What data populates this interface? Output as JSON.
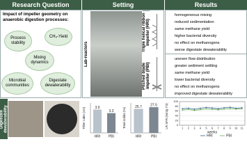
{
  "headers": {
    "research_question": "Research Question",
    "setting": "Setting",
    "results": "Results"
  },
  "research_question": {
    "intro": "Impact of impeller geometry on anaerobic digestion processes:",
    "topics": [
      "Process stability",
      "CH₄-Yield",
      "Mixing dynamics",
      "Microbial communities",
      "Digestate dewaterability"
    ]
  },
  "setting": {
    "lab_label": "Lab-reactors",
    "hri_label": "Triple helical ribbon impeller (HRI)",
    "pbi_label": "Pitched blade impeller (PBI)"
  },
  "results": {
    "hri": [
      "homogeneous mixing",
      "reduced sedimentation",
      "same methane yield",
      "higher bacterial diversity",
      "no effect on methanogens",
      "worse digestate dewaterability"
    ],
    "pbi": [
      "uneven flow distribution",
      "greater sediment settling",
      "same methane yield",
      "lower bacterial diversity",
      "no effect on methanogens",
      "improved digestate dewaterability"
    ]
  },
  "dewaterability_label": "Digestate dewaterability",
  "chart_data": [
    {
      "type": "bar",
      "y_label": "Filter cake (cm)",
      "categories": [
        "HRI",
        "PBI"
      ],
      "values": [
        3.9,
        3.3
      ],
      "colors": [
        "#b9c3cc",
        "#7d8792"
      ],
      "ylim": [
        0,
        5
      ]
    },
    {
      "type": "bar",
      "y_label": "Total solids (%)",
      "categories": [
        "HRI",
        "PBI"
      ],
      "values": [
        25.7,
        27.5
      ],
      "colors": [
        "#b9c3cc",
        "#7d8792"
      ],
      "ylim": [
        0,
        32
      ]
    },
    {
      "type": "line",
      "y_label": "LR SFR (min/g TS)",
      "x_label": "weeks",
      "x": [
        1,
        2,
        3,
        4,
        5,
        6,
        7,
        8,
        9,
        10,
        11
      ],
      "series": [
        {
          "name": "HRI",
          "color": "#2e5f8a",
          "values": [
            70,
            72,
            68,
            72,
            75,
            73,
            70,
            74,
            76,
            72,
            74
          ]
        },
        {
          "name": "PBI",
          "color": "#6aa84f",
          "values": [
            64,
            67,
            63,
            66,
            69,
            67,
            65,
            68,
            70,
            68,
            70
          ]
        }
      ],
      "xlim": [
        0.5,
        11.5
      ],
      "xticks": [
        1,
        2,
        3,
        4,
        5,
        6,
        7,
        8,
        9,
        10,
        11
      ],
      "ylim": [
        0,
        100
      ],
      "yticks": [
        0,
        20,
        40,
        60,
        80,
        100
      ]
    }
  ]
}
